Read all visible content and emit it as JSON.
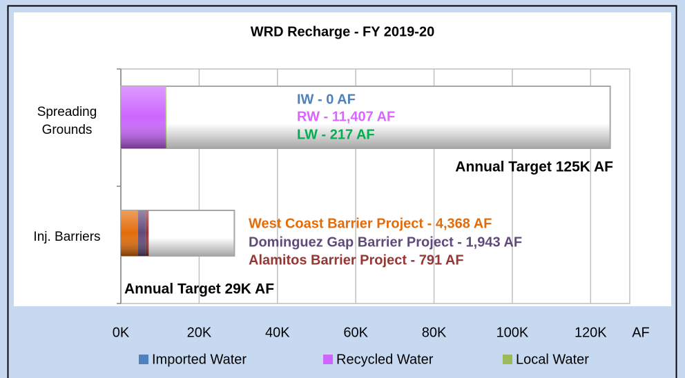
{
  "chart_data": {
    "type": "stacked_bar_horizontal",
    "title": "WRD Recharge - FY 2019-20",
    "categories": [
      "Spreading Grounds",
      "Inj. Barriers"
    ],
    "xlabel": "AF",
    "xlim": [
      0,
      130000
    ],
    "xticks": [
      {
        "value": 0,
        "label": "0K"
      },
      {
        "value": 20000,
        "label": "20K"
      },
      {
        "value": 40000,
        "label": "40K"
      },
      {
        "value": 60000,
        "label": "60K"
      },
      {
        "value": 80000,
        "label": "80K"
      },
      {
        "value": 100000,
        "label": "100K"
      },
      {
        "value": 120000,
        "label": "120K"
      }
    ],
    "grid": true,
    "targets": {
      "values": [
        125000,
        29000
      ],
      "value_labels": [
        "Annual Target 125K AF",
        "Annual Target 29K AF"
      ]
    },
    "series": [
      {
        "name": "Imported Water",
        "color": "#4f81bd",
        "label_color": "#4f81bd",
        "values": [
          0,
          null
        ],
        "value_labels": [
          "IW - 0 AF",
          null
        ]
      },
      {
        "name": "Recycled Water",
        "color": "#cc66ff",
        "label_color": "#d966ff",
        "values": [
          11407,
          null
        ],
        "value_labels": [
          "RW - 11,407 AF",
          null
        ]
      },
      {
        "name": "Local Water",
        "color": "#9bbb59",
        "label_color": "#00b050",
        "values": [
          217,
          null
        ],
        "value_labels": [
          "LW - 217 AF",
          null
        ]
      },
      {
        "color": "#e36c09",
        "label_color": "#e36c09",
        "values": [
          null,
          4368
        ],
        "value_labels": [
          null,
          "West Coast Barrier Project - 4,368 AF"
        ]
      },
      {
        "color": "#604a7b",
        "label_color": "#604a7b",
        "values": [
          null,
          1943
        ],
        "value_labels": [
          null,
          "Dominguez Gap Barrier Project - 1,943 AF"
        ]
      },
      {
        "color": "#953735",
        "label_color": "#953735",
        "values": [
          null,
          791
        ],
        "value_labels": [
          null,
          "Alamitos Barrier Project  -  791 AF"
        ]
      }
    ],
    "legend": "bottom"
  }
}
